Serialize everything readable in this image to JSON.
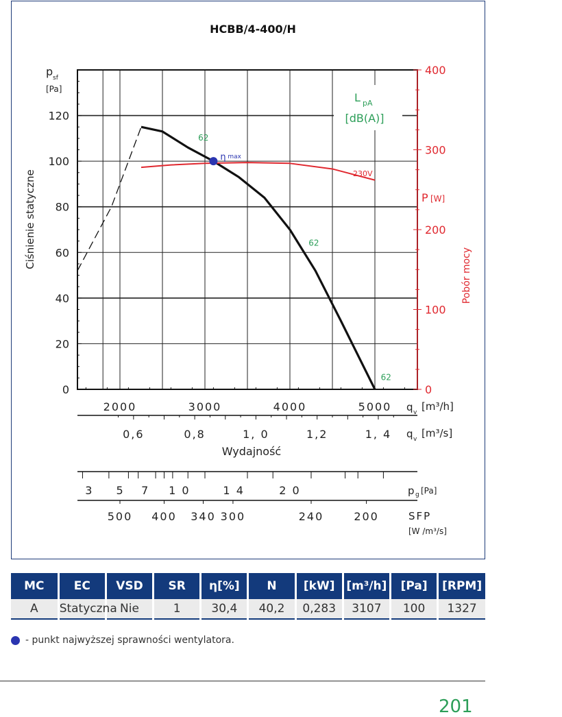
{
  "chart_data": {
    "type": "line",
    "title": "HCBB/4-400/H",
    "left_axis": {
      "symbol": "p",
      "subscript": "sf",
      "unit": "[Pa]",
      "label": "Ciśnienie statyczne",
      "ylim": [
        0,
        140
      ],
      "ticks": [
        0,
        20,
        40,
        60,
        80,
        100,
        120
      ]
    },
    "right_axis": {
      "symbol": "P",
      "unit": "[W]",
      "label": "Pobór mocy",
      "color": "#e0282f",
      "ylim": [
        0,
        400
      ],
      "ticks": [
        0,
        100,
        200,
        300,
        400
      ]
    },
    "x_axis": {
      "xlim": [
        1500,
        5500
      ],
      "tick_labels": [
        "2000",
        "3000",
        "4000",
        "5000"
      ],
      "ticks": [
        2000,
        3000,
        4000,
        5000
      ],
      "symbol": "q",
      "subscript": "v",
      "unit": "[m³/h]"
    },
    "x_axis_secondary": {
      "tick_labels": [
        "0,6",
        "0,8",
        "1, 0",
        "1,2",
        "1, 4"
      ],
      "values": [
        0.6,
        0.8,
        1.0,
        1.2,
        1.4
      ],
      "symbol": "q",
      "subscript": "v",
      "unit": "[m³/s]",
      "label": "Wydajność"
    },
    "pg_axis": {
      "tick_labels": [
        "3",
        "5",
        "7",
        "1 0",
        "1 4",
        "2 0"
      ],
      "values": [
        3,
        5,
        7,
        10,
        14,
        20
      ],
      "symbol": "p",
      "subscript": "g",
      "unit": "[Pa]"
    },
    "sfp_axis": {
      "tick_labels": [
        "500",
        "400",
        "340",
        "300",
        "240",
        "200"
      ],
      "values": [
        500,
        400,
        340,
        300,
        240,
        200
      ],
      "label": "SFP",
      "unit": "[W /m³/s]"
    },
    "corner_label": {
      "main": "L",
      "subscript": "pA",
      "unit": "[dB(A)]",
      "color": "#2c9e58"
    },
    "series": [
      {
        "name": "",
        "color": "#111111",
        "style": "solid",
        "x": [
          2250,
          2500,
          2800,
          3100,
          3400,
          3700,
          4000,
          4300,
          4600,
          5000
        ],
        "y": [
          115,
          113,
          106,
          100,
          93,
          84,
          70,
          52,
          30,
          0
        ]
      },
      {
        "name": "",
        "color": "#111111",
        "style": "dashed",
        "x": [
          1500,
          1900,
          2250
        ],
        "y": [
          52,
          80,
          115
        ]
      },
      {
        "name": "230V",
        "color": "#e0282f",
        "style": "solid",
        "axis": "right",
        "x": [
          2250,
          2600,
          3000,
          3500,
          4000,
          4500,
          5000
        ],
        "y": [
          278,
          281,
          283,
          284,
          283,
          276,
          262
        ]
      }
    ],
    "annotations": [
      {
        "text": "62",
        "x": 2920,
        "y": 109,
        "color": "#2c9e58"
      },
      {
        "text": "62",
        "x": 4220,
        "y": 63,
        "color": "#2c9e58"
      },
      {
        "text": "62",
        "x": 5070,
        "y": 4,
        "color": "#2c9e58"
      },
      {
        "text": "η",
        "sub": "max",
        "x": 3100,
        "y": 100,
        "color": "#2a35b0",
        "marker": true
      }
    ],
    "grid": true
  },
  "table": {
    "headers": [
      "MC",
      "EC",
      "VSD",
      "SR",
      "η[%]",
      "N",
      "[kW]",
      "[m³/h]",
      "[Pa]",
      "[RPM]"
    ],
    "row": [
      "A",
      "Statyczna",
      "Nie",
      "1",
      "30,4",
      "40,2",
      "0,283",
      "3107",
      "100",
      "1327"
    ]
  },
  "legend_note": "- punkt najwyższej sprawności wentylatora.",
  "page_number": "201"
}
